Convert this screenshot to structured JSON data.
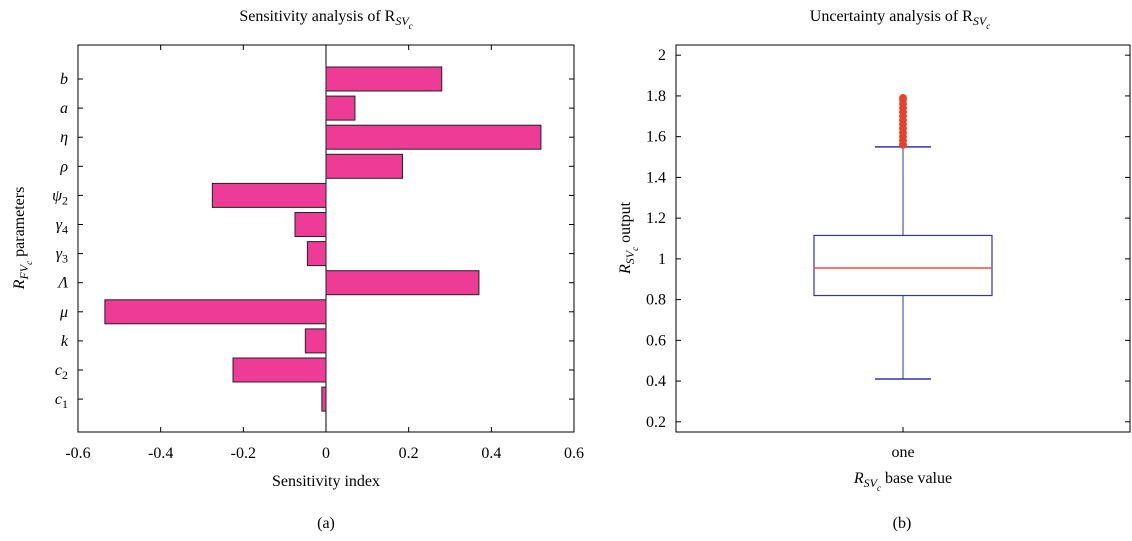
{
  "chart_data": [
    {
      "type": "bar",
      "orientation": "horizontal",
      "title": "Sensitivity analysis of R",
      "title_sub": "SV",
      "title_subsub": "c",
      "xlabel": "Sensitivity index",
      "ylabel_main": "R",
      "ylabel_sub": "FV",
      "ylabel_subsub": "c",
      "ylabel_suffix": " parameters",
      "caption": "(a)",
      "xlim": [
        -0.6,
        0.6
      ],
      "xticks": [
        "-0.6",
        "-0.4",
        "-0.2",
        "0",
        "0.2",
        "0.4",
        "0.6"
      ],
      "xtick_values": [
        -0.6,
        -0.4,
        -0.2,
        0,
        0.2,
        0.4,
        0.6
      ],
      "bar_color": "#ee3c96",
      "categories": [
        {
          "base": "b",
          "sub": ""
        },
        {
          "base": "a",
          "sub": ""
        },
        {
          "base": "η",
          "sub": ""
        },
        {
          "base": "ρ",
          "sub": ""
        },
        {
          "base": "ψ",
          "sub": "2"
        },
        {
          "base": "γ",
          "sub": "4"
        },
        {
          "base": "γ",
          "sub": "3"
        },
        {
          "base": "Λ",
          "sub": ""
        },
        {
          "base": "μ",
          "sub": ""
        },
        {
          "base": "k",
          "sub": ""
        },
        {
          "base": "c",
          "sub": "2"
        },
        {
          "base": "c",
          "sub": "1"
        }
      ],
      "values": [
        0.28,
        0.07,
        0.52,
        0.185,
        -0.275,
        -0.075,
        -0.045,
        0.37,
        -0.535,
        -0.05,
        -0.225,
        -0.01
      ]
    },
    {
      "type": "box",
      "title": "Uncertainty analysis of R",
      "title_sub": "SV",
      "title_subsub": "c",
      "xlabel_main": "R",
      "xlabel_sub": "SV",
      "xlabel_subsub": "c",
      "xlabel_suffix": " base value",
      "ylabel_main": "R",
      "ylabel_sub": "SV",
      "ylabel_subsub": "c",
      "ylabel_suffix": " output",
      "caption": "(b)",
      "category": "one",
      "ylim": [
        0.15,
        2.05
      ],
      "yticks": [
        "0.2",
        "0.4",
        "0.6",
        "0.8",
        "1",
        "1.2",
        "1.4",
        "1.6",
        "1.8",
        "2"
      ],
      "ytick_values": [
        0.2,
        0.4,
        0.6,
        0.8,
        1.0,
        1.2,
        1.4,
        1.6,
        1.8,
        2.0
      ],
      "box": {
        "whisker_low": 0.41,
        "q1": 0.82,
        "median": 0.955,
        "q3": 1.115,
        "whisker_high": 1.55
      },
      "outliers": [
        1.56,
        1.58,
        1.6,
        1.62,
        1.64,
        1.66,
        1.68,
        1.7,
        1.72,
        1.74,
        1.76,
        1.78,
        1.79
      ],
      "box_color": "#3333aa",
      "median_color": "#e8533a",
      "outlier_color": "#e8402a"
    }
  ]
}
